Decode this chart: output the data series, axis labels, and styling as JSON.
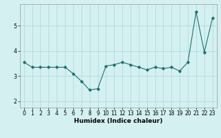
{
  "x": [
    0,
    1,
    2,
    3,
    4,
    5,
    6,
    7,
    8,
    9,
    10,
    11,
    12,
    13,
    14,
    15,
    16,
    17,
    18,
    19,
    20,
    21,
    22,
    23
  ],
  "y_main": [
    3.55,
    3.35,
    3.35,
    3.35,
    3.35,
    3.35,
    3.1,
    2.8,
    2.45,
    2.5,
    3.4,
    3.45,
    3.55,
    3.45,
    3.35,
    3.25,
    3.35,
    3.3,
    3.35,
    3.2,
    3.55,
    5.55,
    3.95,
    5.3
  ],
  "line_color": "#1a7070",
  "marker": "D",
  "marker_size": 1.8,
  "bg_color": "#d4f0f0",
  "grid_color": "#a8d8d8",
  "xlabel": "Humidex (Indice chaleur)",
  "xlim": [
    -0.5,
    23.5
  ],
  "ylim": [
    1.75,
    5.85
  ],
  "yticks": [
    2,
    3,
    4,
    5
  ],
  "xticks": [
    0,
    1,
    2,
    3,
    4,
    5,
    6,
    7,
    8,
    9,
    10,
    11,
    12,
    13,
    14,
    15,
    16,
    17,
    18,
    19,
    20,
    21,
    22,
    23
  ],
  "xlabel_fontsize": 6.5,
  "tick_fontsize": 5.5,
  "linewidth": 0.8
}
